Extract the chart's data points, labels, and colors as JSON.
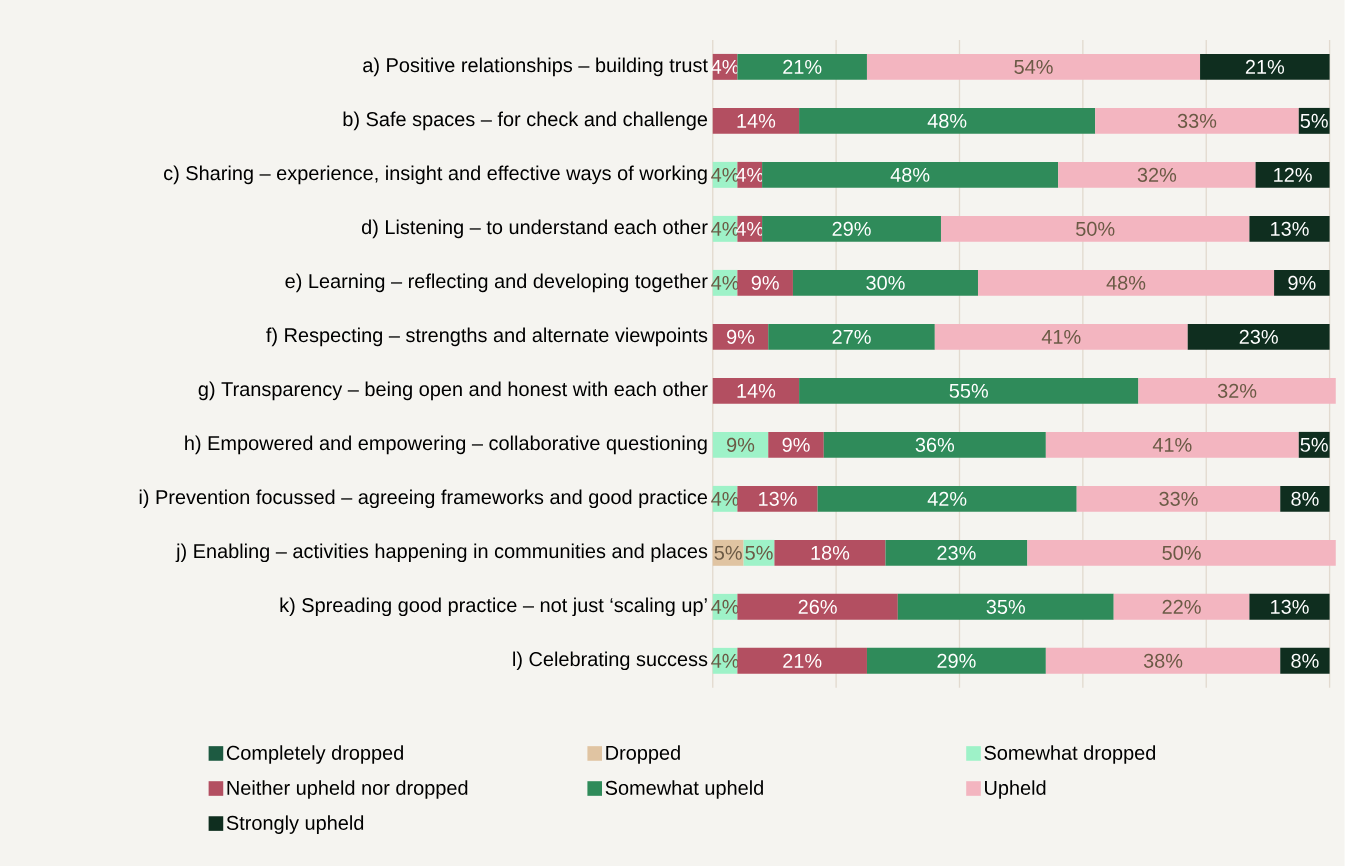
{
  "chart_data": {
    "type": "bar",
    "orientation": "horizontal",
    "stacked": true,
    "categories": [
      "a) Positive relationships – building trust",
      "b) Safe spaces – for check and challenge",
      "c) Sharing – experience, insight and effective ways of working",
      "d) Listening – to understand each other",
      "e) Learning – reflecting and developing together",
      "f) Respecting – strengths and alternate viewpoints",
      "g) Transparency – being open and honest with each other",
      "h) Empowered and empowering – collaborative questioning",
      "i) Prevention focussed – agreeing frameworks and good practice",
      "j) Enabling – activities happening in communities and places",
      "k) Spreading good practice – not just ‘scaling up’",
      "l) Celebrating success"
    ],
    "series": [
      {
        "name": "Completely dropped",
        "color": "#1d5a41",
        "values": [
          null,
          null,
          null,
          null,
          null,
          null,
          null,
          null,
          null,
          null,
          null,
          null
        ],
        "value_labels": [
          null,
          null,
          null,
          null,
          null,
          null,
          null,
          null,
          null,
          null,
          null,
          null
        ]
      },
      {
        "name": "Dropped",
        "color": "#e0c4a2",
        "values": [
          null,
          null,
          null,
          null,
          null,
          null,
          null,
          null,
          null,
          5,
          null,
          null
        ],
        "value_labels": [
          null,
          null,
          null,
          null,
          null,
          null,
          null,
          null,
          null,
          "5%",
          null,
          null
        ]
      },
      {
        "name": "Somewhat dropped",
        "color": "#9ef2c8",
        "values": [
          null,
          null,
          4,
          4,
          4,
          null,
          null,
          9,
          4,
          5,
          4,
          4
        ],
        "value_labels": [
          null,
          null,
          "4%",
          "4%",
          "4%",
          null,
          null,
          "9%",
          "4%",
          "5%",
          "4%",
          "4%"
        ]
      },
      {
        "name": "Neither upheld nor dropped",
        "color": "#b34f61",
        "values": [
          4,
          14,
          4,
          4,
          9,
          9,
          14,
          9,
          13,
          18,
          26,
          21
        ],
        "value_labels": [
          "4%",
          "14%",
          "4%",
          "4%",
          "9%",
          "9%",
          "14%",
          "9%",
          "13%",
          "18%",
          "26%",
          "21%"
        ]
      },
      {
        "name": "Somewhat upheld",
        "color": "#2f8b5a",
        "values": [
          21,
          48,
          48,
          29,
          30,
          27,
          55,
          36,
          42,
          23,
          35,
          29
        ],
        "value_labels": [
          "21%",
          "48%",
          "48%",
          "29%",
          "30%",
          "27%",
          "55%",
          "36%",
          "42%",
          "23%",
          "35%",
          "29%"
        ]
      },
      {
        "name": "Upheld",
        "color": "#f3b5c0",
        "values": [
          54,
          33,
          32,
          50,
          48,
          41,
          32,
          41,
          33,
          50,
          22,
          38
        ],
        "value_labels": [
          "54%",
          "33%",
          "32%",
          "50%",
          "48%",
          "41%",
          "32%",
          "41%",
          "33%",
          "50%",
          "22%",
          "38%"
        ]
      },
      {
        "name": "Strongly upheld",
        "color": "#0f2e1f",
        "values": [
          21,
          5,
          12,
          13,
          9,
          23,
          null,
          5,
          8,
          null,
          13,
          8
        ],
        "value_labels": [
          "21%",
          "5%",
          "12%",
          "13%",
          "9%",
          "23%",
          null,
          "5%",
          "8%",
          null,
          "13%",
          "8%"
        ]
      }
    ],
    "xlim": [
      0,
      101
    ],
    "xticks": [
      {
        "value": 0,
        "label": null
      },
      {
        "value": 20,
        "label": null
      },
      {
        "value": 40,
        "label": null
      },
      {
        "value": 60,
        "label": null
      },
      {
        "value": 80,
        "label": null
      },
      {
        "value": 100,
        "label": null
      }
    ],
    "grid": "x",
    "tick_labels": "y",
    "legend": "bottom"
  }
}
